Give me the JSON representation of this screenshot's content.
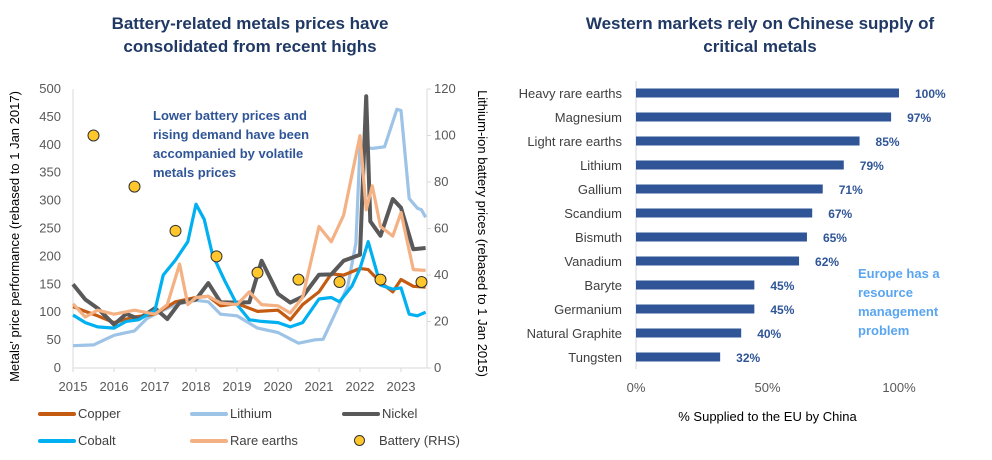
{
  "left_chart": {
    "title": "Battery-related metals prices have consolidated from recent highs",
    "annotation": "Lower battery prices and rising demand have been accompanied by volatile metals prices",
    "legend": [
      {
        "name": "Copper",
        "color": "#C55A11",
        "type": "line"
      },
      {
        "name": "Lithium",
        "color": "#9DC3E6",
        "type": "line"
      },
      {
        "name": "Nickel",
        "color": "#595959",
        "type": "line"
      },
      {
        "name": "Cobalt",
        "color": "#00B0F0",
        "type": "line"
      },
      {
        "name": "Rare earths",
        "color": "#F4B183",
        "type": "line"
      },
      {
        "name": "Battery (RHS)",
        "color": "#FFC72C",
        "type": "marker"
      }
    ]
  },
  "right_chart": {
    "title": "Western markets rely on Chinese supply of critical metals",
    "annotation": "Europe has a resource management problem"
  },
  "chart_data": [
    {
      "type": "line",
      "title": "Battery-related metals prices have consolidated from recent highs",
      "xlabel": "",
      "ylabel": "Metals' price performance (rebased to 1 Jan 2017)",
      "y2label": "Lithium-ion battery prices (rebased to 1 Jan 2015)",
      "xlim": [
        2015,
        2023.6
      ],
      "ylim": [
        0,
        500
      ],
      "y2lim": [
        0,
        120
      ],
      "x_ticks": [
        "2015",
        "2016",
        "2017",
        "2018",
        "2019",
        "2020",
        "2021",
        "2022",
        "2023"
      ],
      "y_ticks": [
        "0",
        "50",
        "100",
        "150",
        "200",
        "250",
        "300",
        "350",
        "400",
        "450",
        "500"
      ],
      "y2_ticks": [
        "0",
        "20",
        "40",
        "60",
        "80",
        "100",
        "120"
      ],
      "grid": false,
      "legend_position": "bottom",
      "series": [
        {
          "name": "Lithium",
          "color": "#9DC3E6",
          "axis": "left",
          "x": [
            2015,
            2015.5,
            2016,
            2016.5,
            2016.8,
            2017,
            2017.5,
            2018,
            2018.3,
            2018.6,
            2019,
            2019.5,
            2020,
            2020.5,
            2020.9,
            2021.1,
            2021.4,
            2021.7,
            2021.9,
            2022.0,
            2022.3,
            2022.6,
            2022.9,
            2023.0,
            2023.2,
            2023.4,
            2023.5,
            2023.6
          ],
          "y": [
            40,
            45,
            55,
            70,
            85,
            100,
            110,
            125,
            115,
            100,
            90,
            75,
            60,
            48,
            47,
            55,
            95,
            150,
            220,
            400,
            390,
            400,
            460,
            465,
            300,
            290,
            280,
            270
          ]
        },
        {
          "name": "Copper",
          "color": "#C55A11",
          "axis": "left",
          "x": [
            2015,
            2015.3,
            2015.6,
            2016,
            2016.5,
            2017,
            2017.5,
            2018,
            2018.3,
            2018.6,
            2019,
            2019.5,
            2020,
            2020.3,
            2020.6,
            2021,
            2021.3,
            2021.6,
            2022,
            2022.2,
            2022.5,
            2022.8,
            2023,
            2023.3,
            2023.6
          ],
          "y": [
            110,
            105,
            90,
            85,
            88,
            100,
            115,
            130,
            125,
            115,
            112,
            105,
            100,
            90,
            110,
            140,
            165,
            170,
            175,
            180,
            150,
            140,
            155,
            150,
            145
          ]
        },
        {
          "name": "Nickel",
          "color": "#595959",
          "axis": "left",
          "x": [
            2015,
            2015.3,
            2015.6,
            2016,
            2016.3,
            2016.6,
            2017,
            2017.3,
            2017.6,
            2018,
            2018.3,
            2018.6,
            2019,
            2019.3,
            2019.6,
            2020,
            2020.3,
            2020.6,
            2021,
            2021.3,
            2021.6,
            2022,
            2022.15,
            2022.25,
            2022.5,
            2022.8,
            2023,
            2023.3,
            2023.6
          ],
          "y": [
            150,
            130,
            100,
            85,
            90,
            95,
            100,
            95,
            110,
            130,
            145,
            125,
            110,
            125,
            185,
            140,
            110,
            135,
            160,
            175,
            185,
            210,
            480,
            270,
            230,
            310,
            280,
            220,
            215
          ]
        },
        {
          "name": "Cobalt",
          "color": "#00B0F0",
          "axis": "left",
          "x": [
            2015,
            2015.3,
            2015.6,
            2016,
            2016.3,
            2016.6,
            2017,
            2017.2,
            2017.5,
            2017.8,
            2018,
            2018.2,
            2018.4,
            2018.7,
            2019,
            2019.3,
            2019.6,
            2020,
            2020.3,
            2020.6,
            2021,
            2021.3,
            2021.5,
            2021.8,
            2022,
            2022.2,
            2022.5,
            2022.8,
            2023,
            2023.2,
            2023.4,
            2023.6
          ],
          "y": [
            95,
            85,
            70,
            75,
            80,
            90,
            100,
            170,
            190,
            230,
            290,
            270,
            200,
            160,
            110,
            90,
            80,
            85,
            70,
            85,
            120,
            130,
            115,
            150,
            175,
            230,
            145,
            145,
            140,
            100,
            90,
            100
          ]
        },
        {
          "name": "Rare earths",
          "color": "#F4B183",
          "axis": "left",
          "x": [
            2015,
            2015.3,
            2015.6,
            2016,
            2016.5,
            2017,
            2017.3,
            2017.6,
            2017.8,
            2018,
            2018.3,
            2018.6,
            2019,
            2019.3,
            2019.6,
            2020,
            2020.3,
            2020.6,
            2021,
            2021.3,
            2021.6,
            2022,
            2022.15,
            2022.3,
            2022.5,
            2022.8,
            2023,
            2023.3,
            2023.6
          ],
          "y": [
            115,
            95,
            100,
            100,
            100,
            100,
            110,
            190,
            110,
            130,
            125,
            120,
            110,
            140,
            110,
            115,
            95,
            130,
            250,
            230,
            270,
            420,
            280,
            330,
            250,
            240,
            275,
            180,
            175
          ]
        },
        {
          "name": "Battery (RHS)",
          "color": "#FFC72C",
          "axis": "right",
          "type": "scatter",
          "x": [
            2015.5,
            2016.5,
            2017.5,
            2018.5,
            2019.5,
            2020.5,
            2021.5,
            2022.5,
            2023.5
          ],
          "y": [
            100,
            78,
            59,
            48,
            41,
            38,
            37,
            38,
            37
          ]
        }
      ]
    },
    {
      "type": "bar",
      "orientation": "horizontal",
      "title": "Western markets rely on Chinese supply of critical metals",
      "xlabel": "% Supplied to the EU by China",
      "ylabel": "",
      "xlim": [
        0,
        100
      ],
      "x_ticks": [
        "0%",
        "50%",
        "100%"
      ],
      "categories": [
        "Heavy rare earths",
        "Magnesium",
        "Light rare earths",
        "Lithium",
        "Gallium",
        "Scandium",
        "Bismuth",
        "Vanadium",
        "Baryte",
        "Germanium",
        "Natural Graphite",
        "Tungsten"
      ],
      "values": [
        100,
        97,
        85,
        79,
        71,
        67,
        65,
        62,
        45,
        45,
        40,
        32
      ],
      "labels": [
        "100%",
        "97%",
        "85%",
        "79%",
        "71%",
        "67%",
        "65%",
        "62%",
        "45%",
        "45%",
        "40%",
        "32%"
      ],
      "color": "#2F5597",
      "grid": false
    }
  ]
}
